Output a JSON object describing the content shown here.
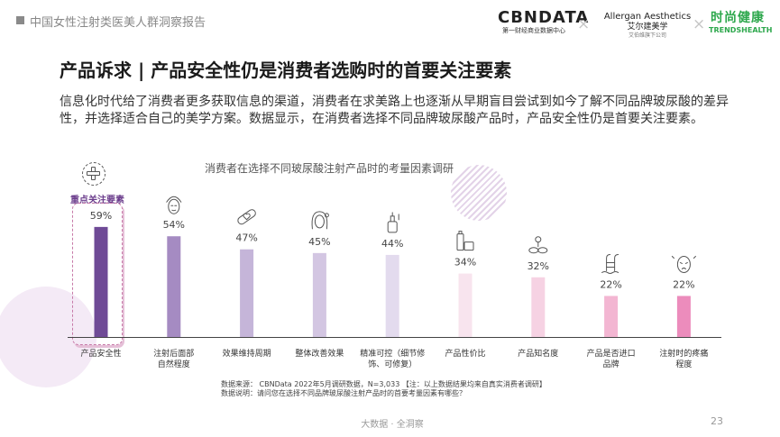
{
  "header": {
    "report_title": "中国女性注射类医美人群洞察报告"
  },
  "logos": {
    "cbndata_main": "CBNDATA",
    "cbndata_sub": "第一财经商业数据中心",
    "separator": "×",
    "allergan_main": "Allergan Aesthetics",
    "allergan_cn": "艾尔建美学",
    "allergan_sub": "艾伯维旗下公司",
    "trends_cn": "时尚健康",
    "trends_en": "TRENDSHEALTH"
  },
  "page": {
    "title": "产品诉求 | 产品安全性仍是消费者选购时的首要关注要素",
    "intro": "信息化时代给了消费者更多获取信息的渠道，消费者在求美路上也逐渐从早期盲目尝试到如今了解不同品牌玻尿酸的差异性，并选择适合自己的美学方案。数据显示，在消费者选择不同品牌玻尿酸产品时，产品安全性仍是首要关注要素。"
  },
  "chart_data": {
    "type": "bar",
    "title": "消费者在选择不同玻尿酸注射产品时的考量因素调研",
    "unit": "%",
    "highlight_label": "重点关注要素",
    "highlight_index": 0,
    "ylim": [
      0,
      65
    ],
    "categories": [
      "产品安全性",
      "注射后面部自然程度",
      "效果维持周期",
      "整体改善效果",
      "精准可控（细节修饰、可修复）",
      "产品性价比",
      "产品知名度",
      "产品是否进口品牌",
      "注射时的疼痛程度"
    ],
    "category_lines": [
      [
        "产品安全性"
      ],
      [
        "注射后面部",
        "自然程度"
      ],
      [
        "效果维持周期"
      ],
      [
        "整体改善效果"
      ],
      [
        "精准可控（细节修",
        "饰、可修复）"
      ],
      [
        "产品性价比"
      ],
      [
        "产品知名度"
      ],
      [
        "产品是否进口",
        "品牌"
      ],
      [
        "注射时的疼痛",
        "程度"
      ]
    ],
    "values": [
      59,
      54,
      47,
      45,
      44,
      34,
      32,
      22,
      22
    ],
    "value_labels": [
      "59%",
      "54%",
      "47%",
      "45%",
      "44%",
      "34%",
      "32%",
      "22%",
      "22%"
    ],
    "colors": [
      "#6f4a96",
      "#a58bc2",
      "#c5b5d9",
      "#d3c6e2",
      "#e3dbee",
      "#f8e4ee",
      "#f6d2e3",
      "#f3b6d2",
      "#ec8cbc"
    ],
    "icons": [
      "medical-cross-icon",
      "face-towel-icon",
      "bandage-heart-icon",
      "woman-face-icon",
      "dropper-bottle-icon",
      "cosmetic-bottles-icon",
      "flower-stones-icon",
      "pool-ladder-icon",
      "face-pain-icon"
    ],
    "grid": false
  },
  "footnote": {
    "source": "数据来源： CBNData 2022年5月调研数据，N=3,033 【注：以上数据结果均来自真实消费者调研】",
    "explanation": "数据说明：请问您在选择不同品牌玻尿酸注射产品时的首要考量因素有哪些？"
  },
  "footer": {
    "tagline": "大数据 · 全洞察",
    "page_number": "23"
  }
}
